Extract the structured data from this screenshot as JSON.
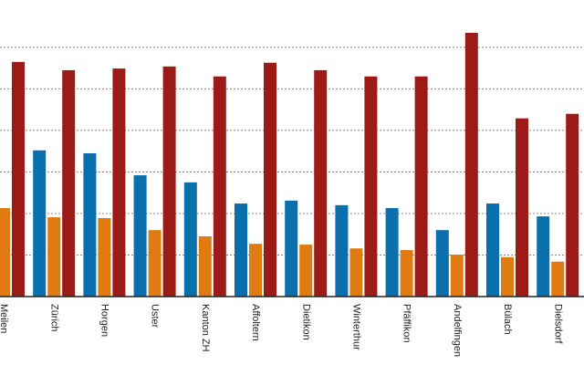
{
  "chart_data": {
    "type": "bar",
    "categories": [
      "Meilen",
      "Zürich",
      "Horgen",
      "Uster",
      "Kanton ZH",
      "Affoltern",
      "Dietikon",
      "Winterthur",
      "Pfäffikon",
      "Andelfingen",
      "Bülach",
      "Dielsdorf"
    ],
    "series": [
      {
        "color": "#0a6fad",
        "values": [
          null,
          35.2,
          34.5,
          29.2,
          27.5,
          22.4,
          23.1,
          22.0,
          21.3,
          16.0,
          22.4,
          19.3
        ]
      },
      {
        "color": "#e07b12",
        "values": [
          21.3,
          19.1,
          18.9,
          16.0,
          14.5,
          12.7,
          12.5,
          11.6,
          11.2,
          10.1,
          9.5,
          8.4
        ]
      },
      {
        "color": "#9c1b16",
        "values": [
          56.5,
          54.5,
          54.9,
          55.4,
          53.0,
          56.3,
          54.5,
          53.0,
          53.0,
          63.5,
          42.9,
          44.0
        ]
      }
    ],
    "ylim": [
      0,
      71.4
    ],
    "yticks": [
      10,
      20,
      30,
      40,
      50,
      60
    ],
    "grid": true
  }
}
